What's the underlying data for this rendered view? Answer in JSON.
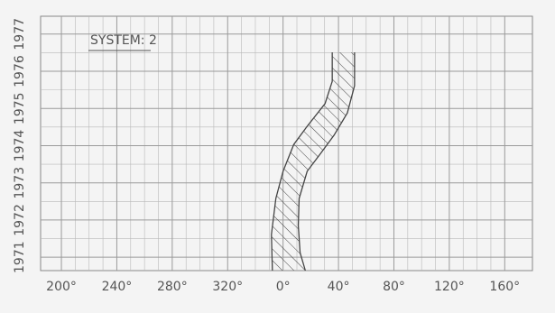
{
  "chart_data": {
    "type": "band",
    "title": "SYSTEM: 2",
    "series": [
      {
        "color": "#444",
        "x": [
          352.3,
          351.6,
          354.8,
          360,
          367.7,
          377.4,
          390.3,
          395.5,
          395.5
        ],
        "values": [
          1970.64,
          1971.61,
          1972.58,
          1973.31,
          1974.03,
          1974.52,
          1975.13,
          1975.73,
          1976.51
        ]
      },
      {
        "color": "#444",
        "x": [
          376.1,
          372.3,
          371,
          371.6,
          377.4,
          387.1,
          396.8,
          406.4,
          411.6,
          411.6
        ],
        "values": [
          1970.64,
          1971.12,
          1971.85,
          1972.58,
          1973.31,
          1973.79,
          1974.28,
          1974.88,
          1975.61,
          1976.51
        ]
      }
    ],
    "xlim": [
      185,
      540
    ],
    "xticks": [
      {
        "value": 200,
        "label": "200°"
      },
      {
        "value": 240,
        "label": "240°"
      },
      {
        "value": 280,
        "label": "280°"
      },
      {
        "value": 320,
        "label": "320°"
      },
      {
        "value": 360,
        "label": "0°"
      },
      {
        "value": 400,
        "label": "40°"
      },
      {
        "value": 440,
        "label": "80°"
      },
      {
        "value": 480,
        "label": "120°"
      },
      {
        "value": 520,
        "label": "160°"
      }
    ],
    "ylim": [
      1970.64,
      1977.48
    ],
    "yticks": [
      1971,
      1972,
      1973,
      1974,
      1975,
      1976,
      1977
    ],
    "grid": true
  }
}
